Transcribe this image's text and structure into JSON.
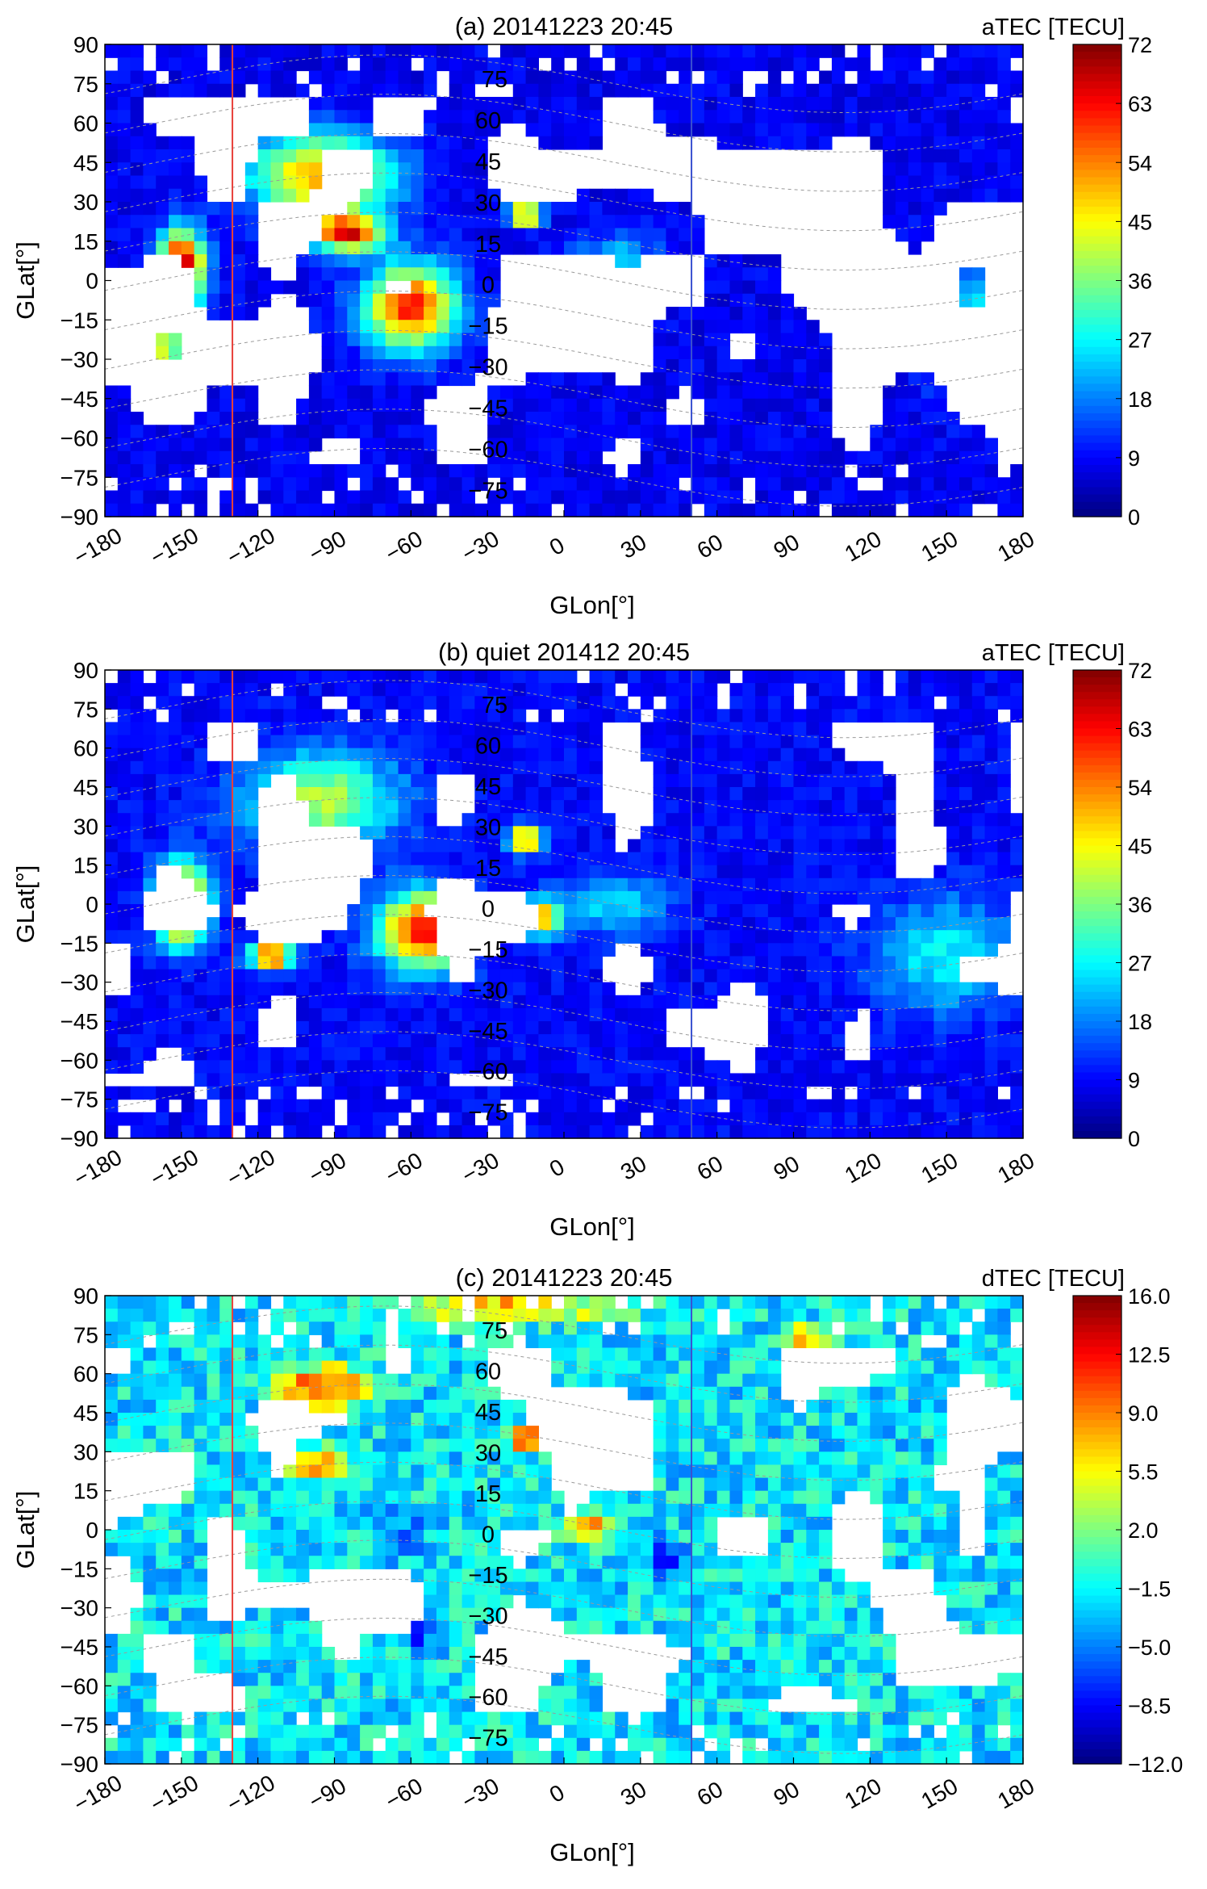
{
  "chart_data": [
    {
      "type": "heatmap",
      "title": "(a) 20141223 20:45",
      "colorbar_label": "aTEC [TECU]",
      "xlabel": "GLon[°]",
      "ylabel": "GLat[°]",
      "xlim": [
        -180,
        180
      ],
      "ylim": [
        -90,
        90
      ],
      "xticks": [
        "−180",
        "−150",
        "−120",
        "−90",
        "−60",
        "−30",
        "0",
        "30",
        "60",
        "90",
        "120",
        "150",
        "180"
      ],
      "yticks": [
        "90",
        "75",
        "60",
        "45",
        "30",
        "15",
        "0",
        "−15",
        "−30",
        "−45",
        "−60",
        "−75",
        "−90"
      ],
      "mag_lat_labels": [
        "75",
        "60",
        "45",
        "30",
        "15",
        "0",
        "−15",
        "−30",
        "−45",
        "−60",
        "−75"
      ],
      "colorbar_ticks": [
        "72",
        "63",
        "54",
        "45",
        "36",
        "27",
        "18",
        "9",
        "0"
      ],
      "clim": [
        0,
        72
      ],
      "vertical_lines": [
        {
          "lon": -130,
          "color": "#e8413a"
        },
        {
          "lon": 50,
          "color": "#3a50d0"
        }
      ],
      "blobs": [
        {
          "lon": -95,
          "lat": 40,
          "sx": 28,
          "sy": 16,
          "v": 52
        },
        {
          "lon": -60,
          "lat": -10,
          "sx": 18,
          "sy": 16,
          "v": 62
        },
        {
          "lon": -85,
          "lat": 18,
          "sx": 14,
          "sy": 7,
          "v": 62
        },
        {
          "lon": -150,
          "lat": 5,
          "sx": 9,
          "sy": 14,
          "v": 72
        },
        {
          "lon": -108,
          "lat": -22,
          "sx": 7,
          "sy": 5,
          "v": 70
        },
        {
          "lon": -15,
          "lat": 25,
          "sx": 6,
          "sy": 4,
          "v": 68
        },
        {
          "lon": -5,
          "lat": -5,
          "sx": 8,
          "sy": 8,
          "v": 60
        },
        {
          "lon": 170,
          "lat": -15,
          "sx": 28,
          "sy": 25,
          "v": 27
        },
        {
          "lon": -160,
          "lat": -25,
          "sx": 12,
          "sy": 12,
          "v": 45
        },
        {
          "lon": 20,
          "lat": 5,
          "sx": 18,
          "sy": 12,
          "v": 26
        }
      ],
      "base": 8,
      "noise": 3,
      "fill_ratio": 0.62,
      "seed": 11
    },
    {
      "type": "heatmap",
      "title": "(b) quiet 201412 20:45",
      "colorbar_label": "aTEC [TECU]",
      "xlabel": "GLon[°]",
      "ylabel": "GLat[°]",
      "xlim": [
        -180,
        180
      ],
      "ylim": [
        -90,
        90
      ],
      "xticks": [
        "−180",
        "−150",
        "−120",
        "−90",
        "−60",
        "−30",
        "0",
        "30",
        "60",
        "90",
        "120",
        "150",
        "180"
      ],
      "yticks": [
        "90",
        "75",
        "60",
        "45",
        "30",
        "15",
        "0",
        "−15",
        "−30",
        "−45",
        "−60",
        "−75",
        "−90"
      ],
      "mag_lat_labels": [
        "75",
        "60",
        "45",
        "30",
        "15",
        "0",
        "−15",
        "−30",
        "−45",
        "−60",
        "−75"
      ],
      "colorbar_ticks": [
        "72",
        "63",
        "54",
        "45",
        "36",
        "27",
        "18",
        "9",
        "0"
      ],
      "clim": [
        0,
        72
      ],
      "vertical_lines": [
        {
          "lon": -130,
          "color": "#e8413a"
        },
        {
          "lon": 50,
          "color": "#3a50d0"
        }
      ],
      "blobs": [
        {
          "lon": -95,
          "lat": 40,
          "sx": 30,
          "sy": 18,
          "v": 40
        },
        {
          "lon": -55,
          "lat": -10,
          "sx": 18,
          "sy": 15,
          "v": 62
        },
        {
          "lon": -150,
          "lat": 0,
          "sx": 10,
          "sy": 15,
          "v": 72
        },
        {
          "lon": -115,
          "lat": -20,
          "sx": 8,
          "sy": 5,
          "v": 66
        },
        {
          "lon": -15,
          "lat": 25,
          "sx": 6,
          "sy": 5,
          "v": 65
        },
        {
          "lon": -10,
          "lat": -5,
          "sx": 9,
          "sy": 7,
          "v": 55
        },
        {
          "lon": 150,
          "lat": -20,
          "sx": 28,
          "sy": 22,
          "v": 27
        },
        {
          "lon": 20,
          "lat": 0,
          "sx": 20,
          "sy": 12,
          "v": 25
        }
      ],
      "base": 9,
      "noise": 3,
      "fill_ratio": 0.66,
      "seed": 23
    },
    {
      "type": "heatmap",
      "title": "(c) 20141223 20:45",
      "colorbar_label": "dTEC [TECU]",
      "xlabel": "GLon[°]",
      "ylabel": "GLat[°]",
      "xlim": [
        -180,
        180
      ],
      "ylim": [
        -90,
        90
      ],
      "xticks": [
        "−180",
        "−150",
        "−120",
        "−90",
        "−60",
        "−30",
        "0",
        "30",
        "60",
        "90",
        "120",
        "150",
        "180"
      ],
      "yticks": [
        "90",
        "75",
        "60",
        "45",
        "30",
        "15",
        "0",
        "−15",
        "−30",
        "−45",
        "−60",
        "−75",
        "−90"
      ],
      "mag_lat_labels": [
        "75",
        "60",
        "45",
        "30",
        "15",
        "0",
        "−15",
        "−30",
        "−45",
        "−60",
        "−75"
      ],
      "colorbar_ticks": [
        "16.0",
        "12.5",
        "9.0",
        "5.5",
        "2.0",
        "−1.5",
        "−5.0",
        "−8.5",
        "−12.0"
      ],
      "clim": [
        -12,
        16
      ],
      "vertical_lines": [
        {
          "lon": -130,
          "color": "#e8413a"
        },
        {
          "lon": 50,
          "color": "#3a50d0"
        }
      ],
      "blobs": [
        {
          "lon": -95,
          "lat": 55,
          "sx": 18,
          "sy": 8,
          "v": 12
        },
        {
          "lon": -100,
          "lat": 25,
          "sx": 12,
          "sy": 6,
          "v": 11
        },
        {
          "lon": -60,
          "lat": -35,
          "sx": 8,
          "sy": 8,
          "v": -12
        },
        {
          "lon": -65,
          "lat": 0,
          "sx": 10,
          "sy": 8,
          "v": -6
        },
        {
          "lon": -20,
          "lat": 85,
          "sx": 40,
          "sy": 5,
          "v": 9
        },
        {
          "lon": 95,
          "lat": 75,
          "sx": 8,
          "sy": 3,
          "v": 14
        },
        {
          "lon": -150,
          "lat": 25,
          "sx": 6,
          "sy": 8,
          "v": 12
        },
        {
          "lon": 10,
          "lat": 0,
          "sx": 8,
          "sy": 5,
          "v": 10
        },
        {
          "lon": -15,
          "lat": 35,
          "sx": 6,
          "sy": 4,
          "v": 14
        },
        {
          "lon": 40,
          "lat": -10,
          "sx": 6,
          "sy": 6,
          "v": -10
        }
      ],
      "base": -2,
      "noise": 3,
      "fill_ratio": 0.6,
      "seed": 37
    }
  ]
}
